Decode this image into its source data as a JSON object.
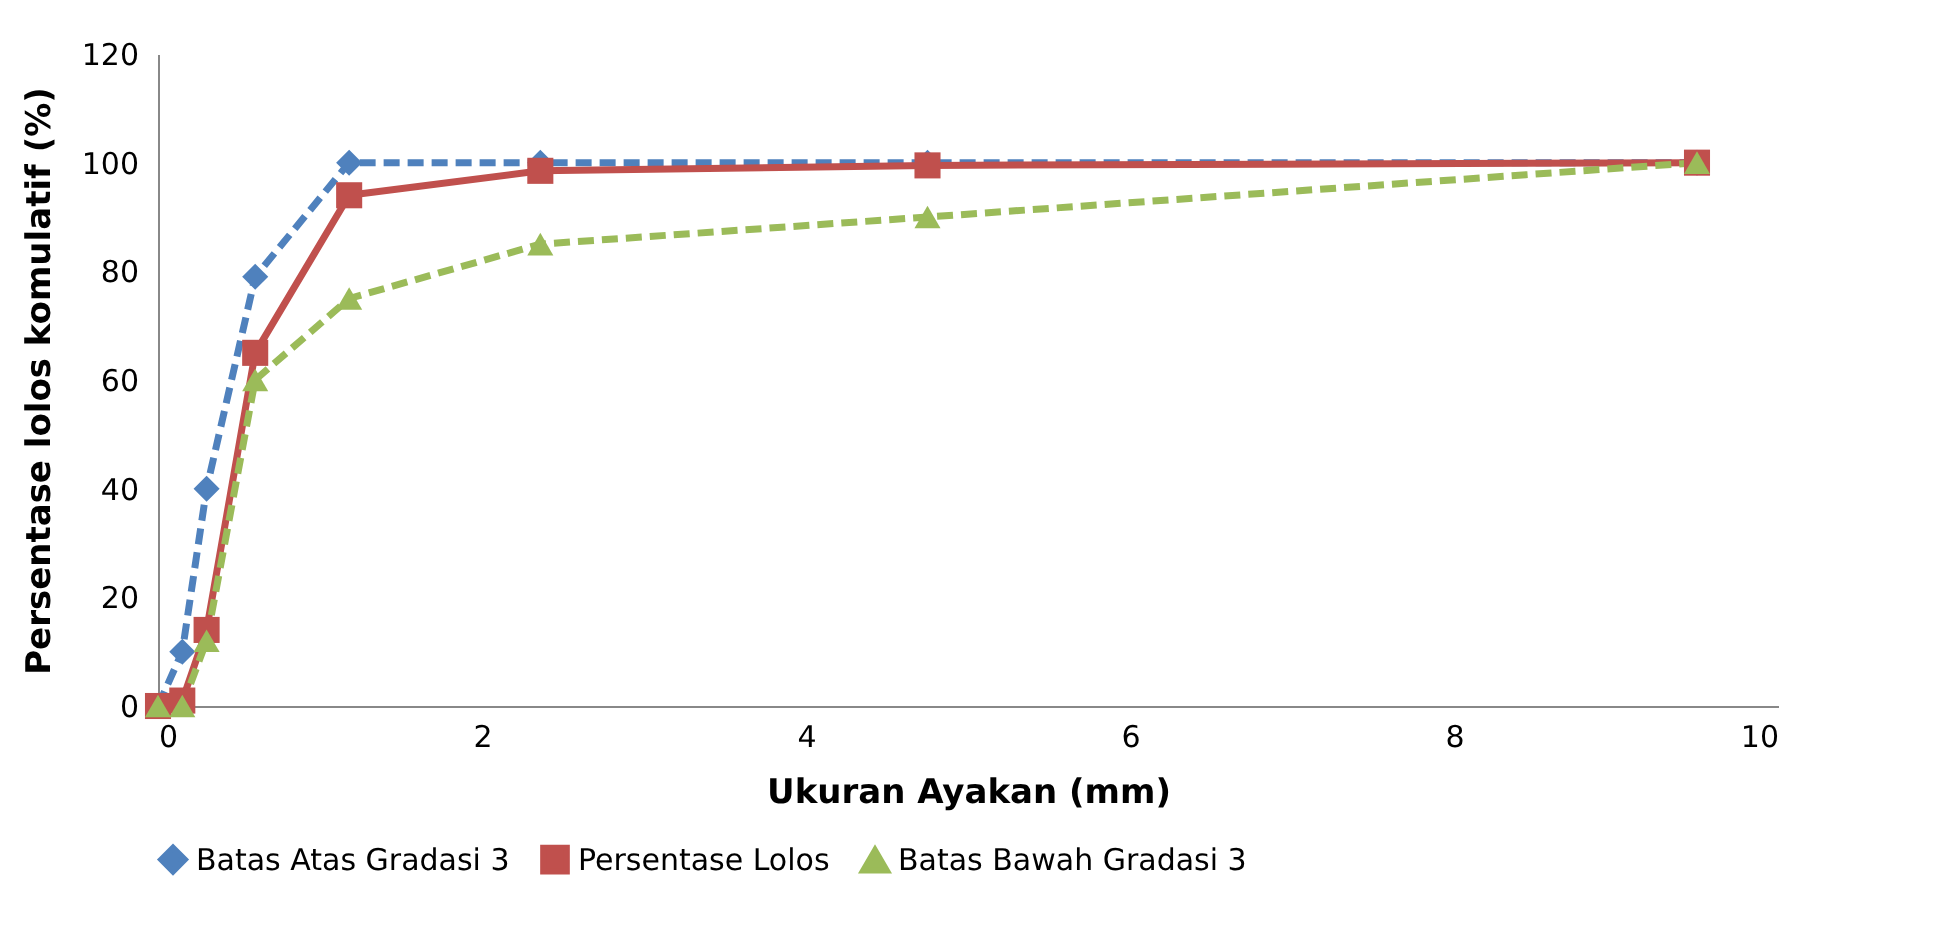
{
  "chart_data": {
    "type": "line",
    "xlabel": "Ukuran Ayakan (mm)",
    "ylabel": "Persentase lolos komulatif (%)",
    "xlim": [
      0,
      10
    ],
    "xticks": [
      0,
      2,
      4,
      6,
      8,
      10
    ],
    "ylim": [
      0,
      120
    ],
    "yticks": [
      0,
      20,
      40,
      60,
      80,
      100,
      120
    ],
    "grid": false,
    "legend": "bottom",
    "series": [
      {
        "name": "Batas Atas Gradasi 3",
        "color": "#4f81bd",
        "marker": "diamond",
        "line_style": "dashed",
        "x": [
          0,
          0.15,
          0.3,
          0.6,
          1.18,
          2.36,
          4.75,
          9.5
        ],
        "values": [
          0,
          10,
          40,
          79,
          100,
          100,
          100,
          100
        ]
      },
      {
        "name": "Persentase Lolos",
        "color": "#c0504d",
        "marker": "square",
        "line_style": "solid",
        "x": [
          0,
          0.15,
          0.3,
          0.6,
          1.18,
          2.36,
          4.75,
          9.5
        ],
        "values": [
          0,
          1,
          14,
          65,
          94,
          98.5,
          99.5,
          100
        ]
      },
      {
        "name": "Batas Bawah Gradasi 3",
        "color": "#9bbb59",
        "marker": "triangle",
        "line_style": "dashed",
        "x": [
          0,
          0.15,
          0.3,
          0.6,
          1.18,
          2.36,
          4.75,
          9.5
        ],
        "values": [
          0,
          0,
          12,
          60,
          75,
          85,
          90,
          100
        ]
      }
    ]
  }
}
